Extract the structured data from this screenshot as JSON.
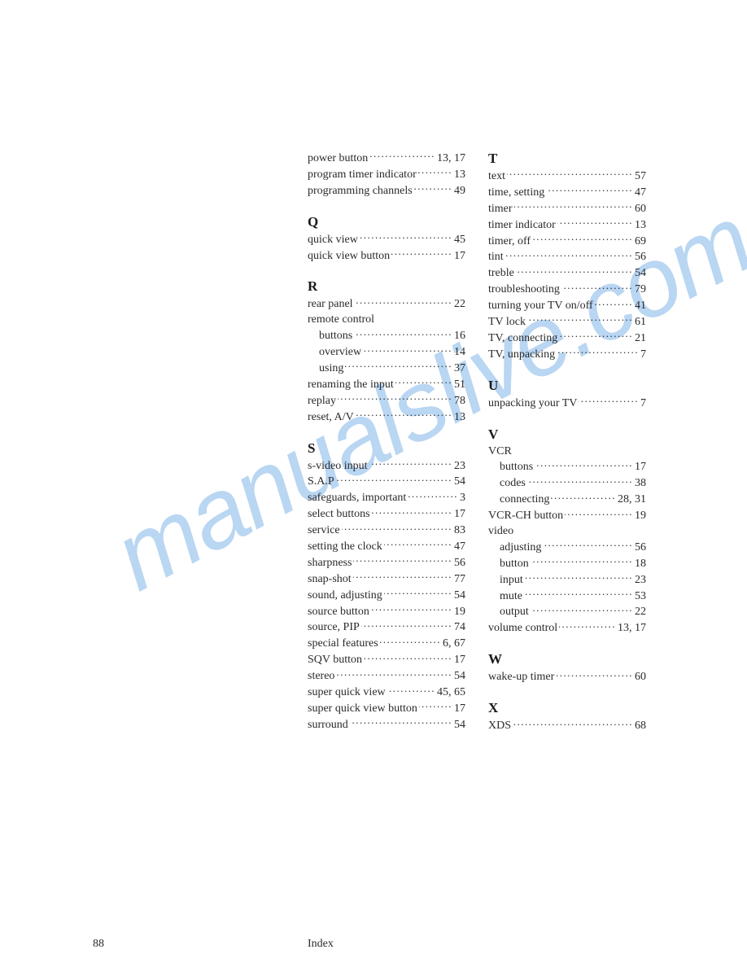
{
  "watermark": "manualslive.com",
  "footer": {
    "page_number": "88",
    "label": "Index"
  },
  "columns": [
    {
      "sections": [
        {
          "entries": [
            {
              "term": "power button",
              "pages": "13, 17"
            },
            {
              "term": "program timer indicator",
              "pages": "13"
            },
            {
              "term": "programming channels",
              "pages": "49"
            }
          ]
        },
        {
          "head": "Q",
          "entries": [
            {
              "term": "quick view",
              "pages": "45"
            },
            {
              "term": "quick view button",
              "pages": "17"
            }
          ]
        },
        {
          "head": "R",
          "entries": [
            {
              "term": "rear panel",
              "pages": "22"
            },
            {
              "term": "remote control",
              "nodots": true
            },
            {
              "term": "buttons",
              "pages": "16",
              "sub": true
            },
            {
              "term": "overview",
              "pages": "14",
              "sub": true
            },
            {
              "term": "using",
              "pages": "37",
              "sub": true
            },
            {
              "term": "renaming the input",
              "pages": "51"
            },
            {
              "term": "replay",
              "pages": "78"
            },
            {
              "term": "reset, A/V",
              "pages": "13"
            }
          ]
        },
        {
          "head": "S",
          "entries": [
            {
              "term": "s-video input",
              "pages": "23"
            },
            {
              "term": "S.A.P",
              "pages": "54"
            },
            {
              "term": "safeguards, important",
              "pages": "3"
            },
            {
              "term": "select buttons",
              "pages": "17"
            },
            {
              "term": "service",
              "pages": "83"
            },
            {
              "term": "setting the clock",
              "pages": "47"
            },
            {
              "term": "sharpness",
              "pages": "56"
            },
            {
              "term": "snap-shot",
              "pages": "77"
            },
            {
              "term": "sound, adjusting",
              "pages": "54"
            },
            {
              "term": "source button",
              "pages": "19"
            },
            {
              "term": "source, PIP",
              "pages": "74"
            },
            {
              "term": "special features",
              "pages": "6, 67"
            },
            {
              "term": "SQV button",
              "pages": "17"
            },
            {
              "term": "stereo",
              "pages": "54"
            },
            {
              "term": "super quick view",
              "pages": "45, 65"
            },
            {
              "term": "super quick view button",
              "pages": "17"
            },
            {
              "term": "surround",
              "pages": "54"
            }
          ]
        }
      ]
    },
    {
      "sections": [
        {
          "head": "T",
          "entries": [
            {
              "term": "text",
              "pages": "57"
            },
            {
              "term": "time, setting",
              "pages": "47"
            },
            {
              "term": "timer",
              "pages": "60"
            },
            {
              "term": "timer indicator",
              "pages": "13"
            },
            {
              "term": "timer, off",
              "pages": "69"
            },
            {
              "term": "tint",
              "pages": "56"
            },
            {
              "term": "treble",
              "pages": "54"
            },
            {
              "term": "troubleshooting",
              "pages": "79"
            },
            {
              "term": "turning your TV on/off",
              "pages": "41"
            },
            {
              "term": "TV lock",
              "pages": "61"
            },
            {
              "term": "TV, connecting",
              "pages": "21"
            },
            {
              "term": "TV, unpacking",
              "pages": "7"
            }
          ]
        },
        {
          "head": "U",
          "entries": [
            {
              "term": "unpacking your TV",
              "pages": "7"
            }
          ]
        },
        {
          "head": "V",
          "entries": [
            {
              "term": "VCR",
              "nodots": true
            },
            {
              "term": "buttons",
              "pages": "17",
              "sub": true
            },
            {
              "term": "codes",
              "pages": "38",
              "sub": true
            },
            {
              "term": "connecting",
              "pages": "28, 31",
              "sub": true
            },
            {
              "term": "VCR-CH button",
              "pages": "19"
            },
            {
              "term": "video",
              "nodots": true
            },
            {
              "term": "adjusting",
              "pages": "56",
              "sub": true
            },
            {
              "term": "button",
              "pages": "18",
              "sub": true
            },
            {
              "term": "input",
              "pages": "23",
              "sub": true
            },
            {
              "term": "mute",
              "pages": "53",
              "sub": true
            },
            {
              "term": "output",
              "pages": "22",
              "sub": true
            },
            {
              "term": "volume control",
              "pages": "13, 17"
            }
          ]
        },
        {
          "head": "W",
          "entries": [
            {
              "term": "wake-up timer",
              "pages": "60"
            }
          ]
        },
        {
          "head": "X",
          "entries": [
            {
              "term": "XDS",
              "pages": "68"
            }
          ]
        }
      ]
    }
  ]
}
